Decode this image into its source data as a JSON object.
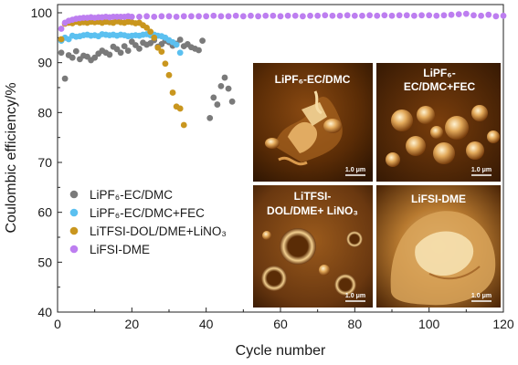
{
  "chart_data": {
    "type": "scatter",
    "xlabel": "Cycle number",
    "ylabel": "Coulombic efficiency/%",
    "xlim": [
      0,
      120
    ],
    "ylim": [
      40,
      100
    ],
    "xticks": [
      0,
      20,
      40,
      60,
      80,
      100,
      120
    ],
    "yticks": [
      40,
      50,
      60,
      70,
      80,
      90,
      100
    ],
    "grid": false,
    "legend_position": "middle-left",
    "series": [
      {
        "name": "LiPF₆-EC/DMC",
        "color": "#7a7a7a",
        "x": [
          1,
          2,
          3,
          4,
          5,
          6,
          7,
          8,
          9,
          10,
          11,
          12,
          13,
          14,
          15,
          16,
          17,
          18,
          19,
          20,
          21,
          22,
          23,
          24,
          25,
          26,
          27,
          28,
          29,
          30,
          31,
          32,
          33,
          34,
          35,
          36,
          37,
          38,
          39,
          41,
          42,
          43,
          44,
          45,
          46,
          47
        ],
        "y": [
          92.0,
          86.8,
          91.5,
          91.0,
          92.3,
          90.7,
          91.4,
          91.2,
          90.5,
          91.0,
          91.8,
          92.4,
          92.0,
          91.6,
          93.2,
          92.7,
          92.0,
          93.3,
          92.4,
          94.2,
          93.5,
          92.8,
          94.0,
          93.6,
          93.9,
          94.5,
          93.2,
          93.7,
          94.4,
          94.1,
          93.4,
          93.8,
          94.6,
          93.3,
          93.7,
          93.1,
          92.8,
          92.5,
          94.4,
          78.9,
          83.0,
          81.6,
          85.3,
          87.0,
          84.8,
          82.2
        ]
      },
      {
        "name": "LiPF₆-EC/DMC+FEC",
        "color": "#5bc0f0",
        "x": [
          1,
          2,
          3,
          4,
          5,
          6,
          7,
          8,
          9,
          10,
          11,
          12,
          13,
          14,
          15,
          16,
          17,
          18,
          19,
          20,
          21,
          22,
          23,
          24,
          25,
          26,
          27,
          28,
          29,
          30,
          31,
          32,
          33
        ],
        "y": [
          94.4,
          95.0,
          94.7,
          95.4,
          95.2,
          95.3,
          95.5,
          95.6,
          95.4,
          95.5,
          95.3,
          95.7,
          95.6,
          95.5,
          95.6,
          95.4,
          95.6,
          95.5,
          95.3,
          95.4,
          95.5,
          95.4,
          95.6,
          95.7,
          95.5,
          95.6,
          95.4,
          95.3,
          95.0,
          94.5,
          94.1,
          93.6,
          92.0
        ]
      },
      {
        "name": "LiTFSI-DOL/DME+LiNO₃",
        "color": "#c9961e",
        "x": [
          1,
          2,
          3,
          4,
          5,
          6,
          7,
          8,
          9,
          10,
          11,
          12,
          13,
          14,
          15,
          16,
          17,
          18,
          19,
          20,
          21,
          22,
          23,
          24,
          25,
          26,
          27,
          28,
          29,
          30,
          31,
          32,
          33,
          34
        ],
        "y": [
          94.7,
          97.8,
          98.0,
          97.9,
          98.2,
          98.0,
          98.1,
          98.0,
          98.2,
          98.1,
          98.2,
          98.0,
          98.2,
          98.1,
          98.0,
          98.3,
          98.1,
          98.0,
          98.2,
          98.1,
          97.9,
          98.0,
          97.5,
          97.0,
          96.2,
          95.0,
          93.0,
          92.2,
          89.8,
          87.5,
          84.0,
          81.2,
          80.8,
          77.5
        ]
      },
      {
        "name": "LiFSI-DME",
        "color": "#bd7ef0",
        "x": [
          1,
          2,
          3,
          4,
          5,
          6,
          7,
          8,
          9,
          10,
          11,
          12,
          13,
          14,
          15,
          16,
          17,
          18,
          19,
          20,
          22,
          24,
          26,
          28,
          30,
          32,
          34,
          36,
          38,
          40,
          42,
          44,
          46,
          48,
          50,
          52,
          54,
          56,
          58,
          60,
          62,
          64,
          66,
          68,
          70,
          72,
          74,
          76,
          78,
          80,
          82,
          84,
          86,
          88,
          90,
          92,
          94,
          96,
          98,
          100,
          102,
          104,
          106,
          108,
          110,
          112,
          114,
          116,
          118,
          120
        ],
        "y": [
          96.8,
          98.0,
          98.4,
          98.6,
          98.8,
          98.9,
          99.0,
          99.0,
          99.1,
          99.0,
          99.1,
          99.1,
          99.2,
          99.1,
          99.2,
          99.2,
          99.2,
          99.2,
          99.3,
          99.2,
          99.2,
          99.3,
          99.2,
          99.3,
          99.3,
          99.2,
          99.3,
          99.3,
          99.3,
          99.3,
          99.4,
          99.3,
          99.3,
          99.4,
          99.3,
          99.4,
          99.3,
          99.4,
          99.4,
          99.3,
          99.4,
          99.4,
          99.3,
          99.4,
          99.4,
          99.5,
          99.4,
          99.4,
          99.5,
          99.4,
          99.4,
          99.5,
          99.4,
          99.5,
          99.4,
          99.5,
          99.5,
          99.4,
          99.5,
          99.5,
          99.4,
          99.5,
          99.6,
          99.7,
          99.8,
          99.5,
          99.4,
          99.6,
          99.3,
          99.4
        ]
      }
    ],
    "insets": [
      {
        "title": "LiPF₆-EC/DMC",
        "scale": "1.0 μm"
      },
      {
        "title": "LiPF₆-EC/DMC+FEC",
        "title_line1": "LiPF₆-",
        "title_line2": "EC/DMC+FEC",
        "scale": "1.0 μm"
      },
      {
        "title": "LiTFSI-DOL/DME+ LiNO₃",
        "title_line1": "LiTFSI-",
        "title_line2": "DOL/DME+ LiNO₃",
        "scale": "1.0 μm"
      },
      {
        "title": "LiFSI-DME",
        "scale": "1.0 μm"
      }
    ]
  }
}
